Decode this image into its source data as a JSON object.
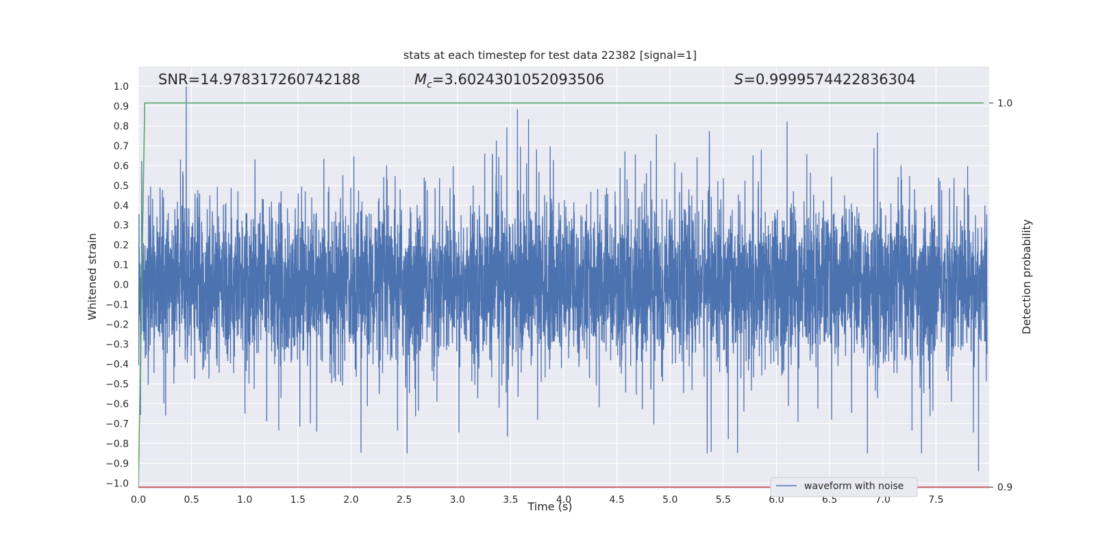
{
  "chart_data": {
    "type": "line",
    "title": "stats at each timestep for test data 22382 [signal=1]",
    "xlabel": "Time (s)",
    "ylabel": "Whitened strain",
    "y2label": "Detection probability",
    "xlim": [
      0.0,
      8.0
    ],
    "ylim": [
      -1.03,
      1.1
    ],
    "y2lim": [
      0.8995,
      1.0095
    ],
    "x_ticks": [
      "0.0",
      "0.5",
      "1.0",
      "1.5",
      "2.0",
      "2.5",
      "3.0",
      "3.5",
      "4.0",
      "4.5",
      "5.0",
      "5.5",
      "6.0",
      "6.5",
      "7.0",
      "7.5"
    ],
    "y_ticks": [
      "−1.0",
      "−0.9",
      "−0.8",
      "−0.7",
      "−0.6",
      "−0.5",
      "−0.4",
      "−0.3",
      "−0.2",
      "−0.1",
      "0.0",
      "0.1",
      "0.2",
      "0.3",
      "0.4",
      "0.5",
      "0.6",
      "0.7",
      "0.8",
      "0.9",
      "1.0"
    ],
    "y2_ticks": [
      "0.9",
      "1.0"
    ],
    "grid": true,
    "legend": {
      "position": "bottom-center-right",
      "entries": [
        "waveform with noise"
      ]
    },
    "annotations": {
      "snr": "SNR=14.978317260742188",
      "mc_symbol": "M",
      "mc_sub": "c",
      "mc_value": "=3.6024301052093506",
      "s_symbol": "S",
      "s_value": "=0.9999574422836304"
    },
    "series": [
      {
        "name": "waveform with noise",
        "color": "#4c72b0",
        "description": "whitened strain noise, roughly symmetric about 0 with amplitude ~0.3 and spikes up to ~±0.9",
        "peak": [
          0.45,
          1.0
        ],
        "trough": [
          7.9,
          -0.94
        ]
      },
      {
        "color": "#55a868",
        "axis": "right",
        "x": [
          0.0,
          0.06,
          7.95
        ],
        "values": [
          0.9,
          1.0,
          1.0
        ]
      },
      {
        "color": "#c44e52",
        "axis": "right",
        "x": [
          0.0,
          8.0
        ],
        "values": [
          0.9,
          0.9
        ]
      }
    ],
    "colors": {
      "plot_bg": "#eaeaf2",
      "grid": "#ffffff",
      "text": "#262626"
    }
  }
}
